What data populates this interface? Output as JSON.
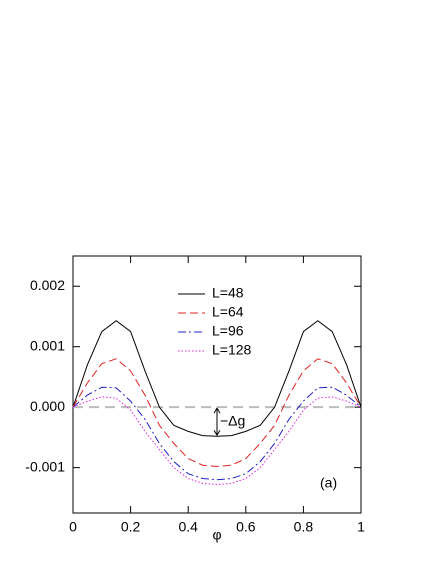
{
  "chart_data": {
    "type": "line",
    "x_label": "φ",
    "annotations": [
      {
        "text": "−Δg"
      },
      {
        "text": "(a)"
      }
    ],
    "x": [
      0,
      0.05,
      0.1,
      0.15,
      0.2,
      0.25,
      0.3,
      0.35,
      0.4,
      0.45,
      0.5,
      0.55,
      0.6,
      0.65,
      0.7,
      0.75,
      0.8,
      0.85,
      0.9,
      0.95,
      1
    ],
    "series": [
      {
        "name": "L=48",
        "color": "#000000",
        "line_style": "solid",
        "values": [
          0,
          0.0007,
          0.00125,
          0.00143,
          0.00125,
          0.0006,
          0.0,
          -0.0003,
          -0.0004,
          -0.00047,
          -0.00048,
          -0.00047,
          -0.0004,
          -0.0003,
          0.0,
          0.0006,
          0.00125,
          0.00143,
          0.00125,
          0.0007,
          0
        ]
      },
      {
        "name": "L=64",
        "color": "#e0201f",
        "line_style": "dashed",
        "values": [
          0,
          0.0004,
          0.00072,
          0.0008,
          0.0006,
          0.0002,
          -0.0003,
          -0.0006,
          -0.00085,
          -0.00096,
          -0.00098,
          -0.00096,
          -0.00085,
          -0.0006,
          -0.0003,
          0.0002,
          0.0006,
          0.0008,
          0.00072,
          0.0004,
          0
        ]
      },
      {
        "name": "L=96",
        "color": "#1f1fc0",
        "line_style": "dashdot",
        "values": [
          0,
          0.0002,
          0.00033,
          0.00032,
          0.0001,
          -0.0002,
          -0.0006,
          -0.0009,
          -0.0011,
          -0.00118,
          -0.0012,
          -0.00118,
          -0.0011,
          -0.0009,
          -0.0006,
          -0.0002,
          0.0001,
          0.00032,
          0.00033,
          0.0002,
          0
        ]
      },
      {
        "name": "L=128",
        "color": "#e020e0",
        "line_style": "dotted",
        "values": [
          0,
          0.0001,
          0.00017,
          0.00015,
          -5e-05,
          -0.0004,
          -0.0007,
          -0.001,
          -0.00118,
          -0.00126,
          -0.00128,
          -0.00126,
          -0.00118,
          -0.001,
          -0.0007,
          -0.0004,
          -5e-05,
          0.00015,
          0.00017,
          0.0001,
          0
        ]
      }
    ],
    "xlim": [
      0,
      1
    ],
    "xticks": [
      0,
      0.2,
      0.4,
      0.6,
      0.8,
      1
    ],
    "ylim": [
      -0.00175,
      0.0025
    ],
    "yticks": [
      -0.001,
      {
        "value": 0,
        "label": "0.000"
      },
      0.001,
      0.002
    ],
    "legend": "top-center",
    "grid": false
  }
}
